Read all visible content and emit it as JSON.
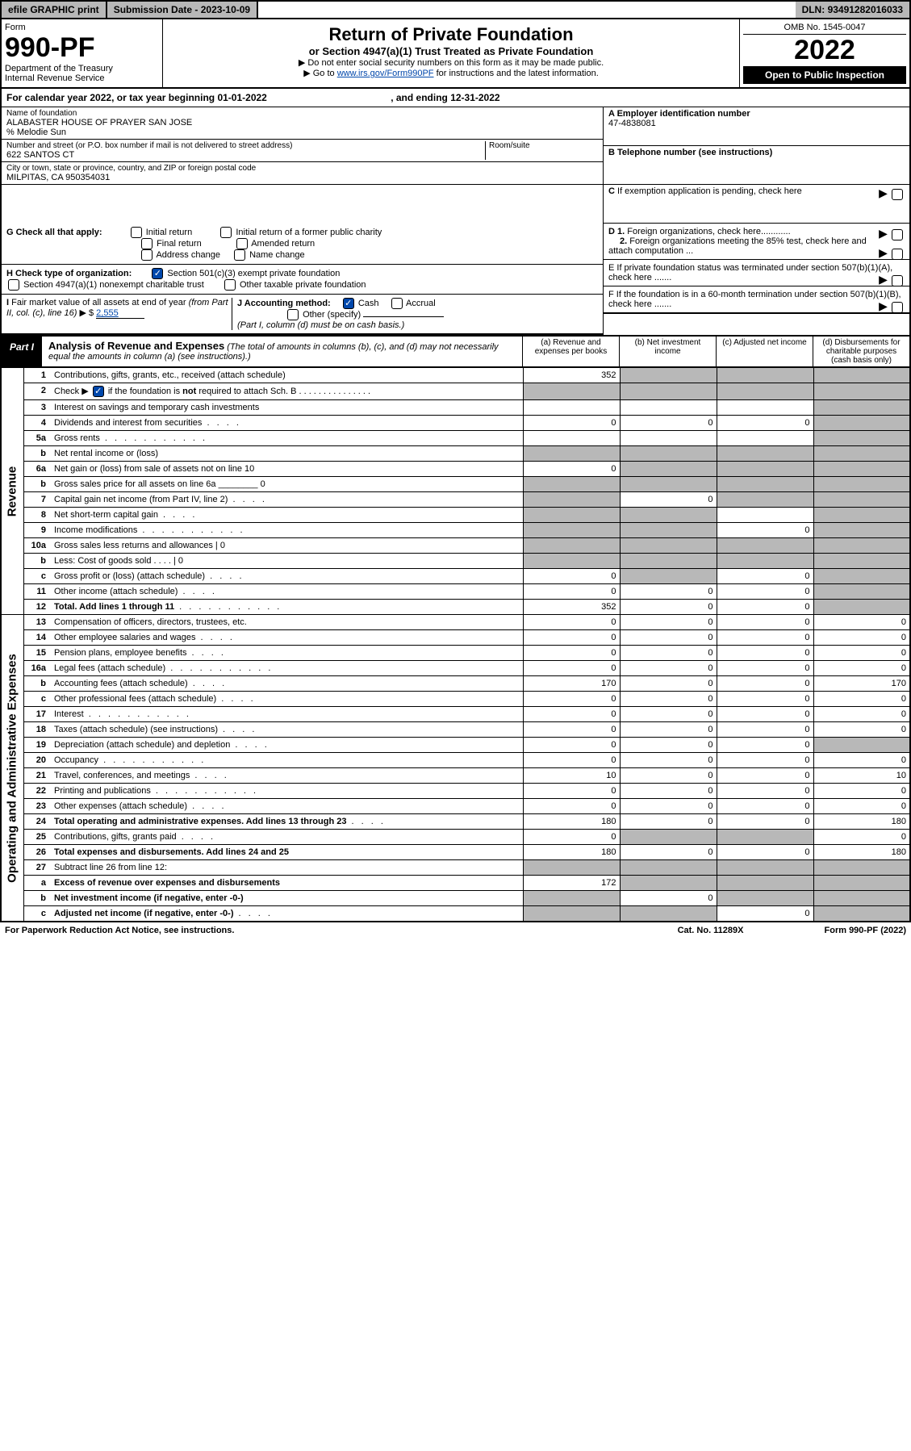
{
  "topbar": {
    "efile": "efile GRAPHIC print",
    "subdate_lbl": "Submission Date - ",
    "subdate": "2023-10-09",
    "dln_lbl": "DLN: ",
    "dln": "93491282016033"
  },
  "header": {
    "form_lbl": "Form",
    "form_no": "990-PF",
    "dept": "Department of the Treasury",
    "irs": "Internal Revenue Service",
    "title": "Return of Private Foundation",
    "subtitle": "or Section 4947(a)(1) Trust Treated as Private Foundation",
    "note1": "▶ Do not enter social security numbers on this form as it may be made public.",
    "note2_pre": "▶ Go to ",
    "note2_link": "www.irs.gov/Form990PF",
    "note2_post": " for instructions and the latest information.",
    "omb": "OMB No. 1545-0047",
    "year": "2022",
    "inspect": "Open to Public Inspection"
  },
  "calyr": {
    "pre": "For calendar year 2022, or tax year beginning ",
    "begin": "01-01-2022",
    "mid": " , and ending ",
    "end": "12-31-2022"
  },
  "info": {
    "name_lbl": "Name of foundation",
    "name": "ALABASTER HOUSE OF PRAYER SAN JOSE",
    "co": "% Melodie Sun",
    "addr_lbl": "Number and street (or P.O. box number if mail is not delivered to street address)",
    "addr": "622 SANTOS CT",
    "room_lbl": "Room/suite",
    "city_lbl": "City or town, state or province, country, and ZIP or foreign postal code",
    "city": "MILPITAS, CA  950354031",
    "a_lbl": "A Employer identification number",
    "a_val": "47-4838081",
    "b_lbl": "B Telephone number (see instructions)",
    "c_lbl": "C If exemption application is pending, check here"
  },
  "checks": {
    "g_lbl": "G Check all that apply:",
    "g_opts": [
      "Initial return",
      "Final return",
      "Address change",
      "Initial return of a former public charity",
      "Amended return",
      "Name change"
    ],
    "h_lbl": "H Check type of organization:",
    "h_opt1": "Section 501(c)(3) exempt private foundation",
    "h_opt2": "Section 4947(a)(1) nonexempt charitable trust",
    "h_opt3": "Other taxable private foundation",
    "i_lbl": "I Fair market value of all assets at end of year (from Part II, col. (c), line 16) ▶ $ ",
    "i_val": "2,555",
    "j_lbl": "J Accounting method:",
    "j_cash": "Cash",
    "j_accrual": "Accrual",
    "j_other": "Other (specify)",
    "j_note": "(Part I, column (d) must be on cash basis.)",
    "d1": "D 1. Foreign organizations, check here............",
    "d2": "2. Foreign organizations meeting the 85% test, check here and attach computation ...",
    "e": "E  If private foundation status was terminated under section 507(b)(1)(A), check here .......",
    "f": "F  If the foundation is in a 60-month termination under section 507(b)(1)(B), check here .......",
    "arrow": "▶"
  },
  "part1": {
    "tag": "Part I",
    "title": "Analysis of Revenue and Expenses",
    "title_note": " (The total of amounts in columns (b), (c), and (d) may not necessarily equal the amounts in column (a) (see instructions).)",
    "cols": {
      "a": "(a) Revenue and expenses per books",
      "b": "(b) Net investment income",
      "c": "(c) Adjusted net income",
      "d": "(d) Disbursements for charitable purposes (cash basis only)"
    }
  },
  "side_labels": {
    "rev": "Revenue",
    "exp": "Operating and Administrative Expenses"
  },
  "rows": [
    {
      "n": "1",
      "d": "Contributions, gifts, grants, etc., received (attach schedule)",
      "a": "352",
      "b": "",
      "c": "",
      "ds": "",
      "sb": true,
      "sc": true,
      "sd": true
    },
    {
      "n": "2",
      "d": "Check ▶ [✓] if the foundation is not required to attach Sch. B",
      "a": "",
      "b": "",
      "c": "",
      "ds": "",
      "sa": true,
      "sb": true,
      "sc": true,
      "sd": true
    },
    {
      "n": "3",
      "d": "Interest on savings and temporary cash investments",
      "a": "",
      "b": "",
      "c": "",
      "ds": "",
      "sd": true
    },
    {
      "n": "4",
      "d": "Dividends and interest from securities",
      "a": "0",
      "b": "0",
      "c": "0",
      "ds": "",
      "sd": true,
      "dots": "s"
    },
    {
      "n": "5a",
      "d": "Gross rents",
      "a": "",
      "b": "",
      "c": "",
      "ds": "",
      "sd": true,
      "dots": "l"
    },
    {
      "n": "b",
      "d": "Net rental income or (loss)",
      "a": "",
      "b": "",
      "c": "",
      "ds": "",
      "sa": true,
      "sb": true,
      "sc": true,
      "sd": true
    },
    {
      "n": "6a",
      "d": "Net gain or (loss) from sale of assets not on line 10",
      "a": "0",
      "b": "",
      "c": "",
      "ds": "",
      "sb": true,
      "sc": true,
      "sd": true
    },
    {
      "n": "b",
      "d": "Gross sales price for all assets on line 6a ________ 0",
      "a": "",
      "b": "",
      "c": "",
      "ds": "",
      "sa": true,
      "sb": true,
      "sc": true,
      "sd": true
    },
    {
      "n": "7",
      "d": "Capital gain net income (from Part IV, line 2)",
      "a": "",
      "b": "0",
      "c": "",
      "ds": "",
      "sa": true,
      "sc": true,
      "sd": true,
      "dots": "s"
    },
    {
      "n": "8",
      "d": "Net short-term capital gain",
      "a": "",
      "b": "",
      "c": "",
      "ds": "",
      "sa": true,
      "sb": true,
      "sd": true,
      "dots": "s"
    },
    {
      "n": "9",
      "d": "Income modifications",
      "a": "",
      "b": "",
      "c": "0",
      "ds": "",
      "sa": true,
      "sb": true,
      "sd": true,
      "dots": "l"
    },
    {
      "n": "10a",
      "d": "Gross sales less returns and allowances     |  0",
      "a": "",
      "b": "",
      "c": "",
      "ds": "",
      "sa": true,
      "sb": true,
      "sc": true,
      "sd": true
    },
    {
      "n": "b",
      "d": "Less: Cost of goods sold  .  .  .  .     |  0",
      "a": "",
      "b": "",
      "c": "",
      "ds": "",
      "sa": true,
      "sb": true,
      "sc": true,
      "sd": true
    },
    {
      "n": "c",
      "d": "Gross profit or (loss) (attach schedule)",
      "a": "0",
      "b": "",
      "c": "0",
      "ds": "",
      "sb": true,
      "sd": true,
      "dots": "s"
    },
    {
      "n": "11",
      "d": "Other income (attach schedule)",
      "a": "0",
      "b": "0",
      "c": "0",
      "ds": "",
      "sd": true,
      "dots": "s"
    },
    {
      "n": "12",
      "d": "Total. Add lines 1 through 11",
      "a": "352",
      "b": "0",
      "c": "0",
      "ds": "",
      "sd": true,
      "bold": true,
      "dots": "l"
    },
    {
      "n": "13",
      "d": "Compensation of officers, directors, trustees, etc.",
      "a": "0",
      "b": "0",
      "c": "0",
      "ds": "0"
    },
    {
      "n": "14",
      "d": "Other employee salaries and wages",
      "a": "0",
      "b": "0",
      "c": "0",
      "ds": "0",
      "dots": "s"
    },
    {
      "n": "15",
      "d": "Pension plans, employee benefits",
      "a": "0",
      "b": "0",
      "c": "0",
      "ds": "0",
      "dots": "s"
    },
    {
      "n": "16a",
      "d": "Legal fees (attach schedule)",
      "a": "0",
      "b": "0",
      "c": "0",
      "ds": "0",
      "dots": "l"
    },
    {
      "n": "b",
      "d": "Accounting fees (attach schedule)",
      "a": "170",
      "b": "0",
      "c": "0",
      "ds": "170",
      "dots": "s"
    },
    {
      "n": "c",
      "d": "Other professional fees (attach schedule)",
      "a": "0",
      "b": "0",
      "c": "0",
      "ds": "0",
      "dots": "s"
    },
    {
      "n": "17",
      "d": "Interest",
      "a": "0",
      "b": "0",
      "c": "0",
      "ds": "0",
      "dots": "l"
    },
    {
      "n": "18",
      "d": "Taxes (attach schedule) (see instructions)",
      "a": "0",
      "b": "0",
      "c": "0",
      "ds": "0",
      "dots": "s"
    },
    {
      "n": "19",
      "d": "Depreciation (attach schedule) and depletion",
      "a": "0",
      "b": "0",
      "c": "0",
      "ds": "",
      "sd": true,
      "dots": "s"
    },
    {
      "n": "20",
      "d": "Occupancy",
      "a": "0",
      "b": "0",
      "c": "0",
      "ds": "0",
      "dots": "l"
    },
    {
      "n": "21",
      "d": "Travel, conferences, and meetings",
      "a": "10",
      "b": "0",
      "c": "0",
      "ds": "10",
      "dots": "s"
    },
    {
      "n": "22",
      "d": "Printing and publications",
      "a": "0",
      "b": "0",
      "c": "0",
      "ds": "0",
      "dots": "l"
    },
    {
      "n": "23",
      "d": "Other expenses (attach schedule)",
      "a": "0",
      "b": "0",
      "c": "0",
      "ds": "0",
      "dots": "s"
    },
    {
      "n": "24",
      "d": "Total operating and administrative expenses. Add lines 13 through 23",
      "a": "180",
      "b": "0",
      "c": "0",
      "ds": "180",
      "bold": true,
      "dots": "s"
    },
    {
      "n": "25",
      "d": "Contributions, gifts, grants paid",
      "a": "0",
      "b": "",
      "c": "",
      "ds": "0",
      "sb": true,
      "sc": true,
      "dots": "s"
    },
    {
      "n": "26",
      "d": "Total expenses and disbursements. Add lines 24 and 25",
      "a": "180",
      "b": "0",
      "c": "0",
      "ds": "180",
      "bold": true
    },
    {
      "n": "27",
      "d": "Subtract line 26 from line 12:",
      "a": "",
      "b": "",
      "c": "",
      "ds": "",
      "sa": true,
      "sb": true,
      "sc": true,
      "sd": true
    },
    {
      "n": "a",
      "d": "Excess of revenue over expenses and disbursements",
      "a": "172",
      "b": "",
      "c": "",
      "ds": "",
      "sb": true,
      "sc": true,
      "sd": true,
      "bold": true
    },
    {
      "n": "b",
      "d": "Net investment income (if negative, enter -0-)",
      "a": "",
      "b": "0",
      "c": "",
      "ds": "",
      "sa": true,
      "sc": true,
      "sd": true,
      "bold": true
    },
    {
      "n": "c",
      "d": "Adjusted net income (if negative, enter -0-)",
      "a": "",
      "b": "",
      "c": "0",
      "ds": "",
      "sa": true,
      "sb": true,
      "sd": true,
      "bold": true,
      "dots": "s"
    }
  ],
  "footer": {
    "left": "For Paperwork Reduction Act Notice, see instructions.",
    "mid": "Cat. No. 11289X",
    "right": "Form 990-PF (2022)"
  },
  "colors": {
    "shade": "#b8b8b8",
    "link": "#0047ab",
    "black": "#000000"
  }
}
